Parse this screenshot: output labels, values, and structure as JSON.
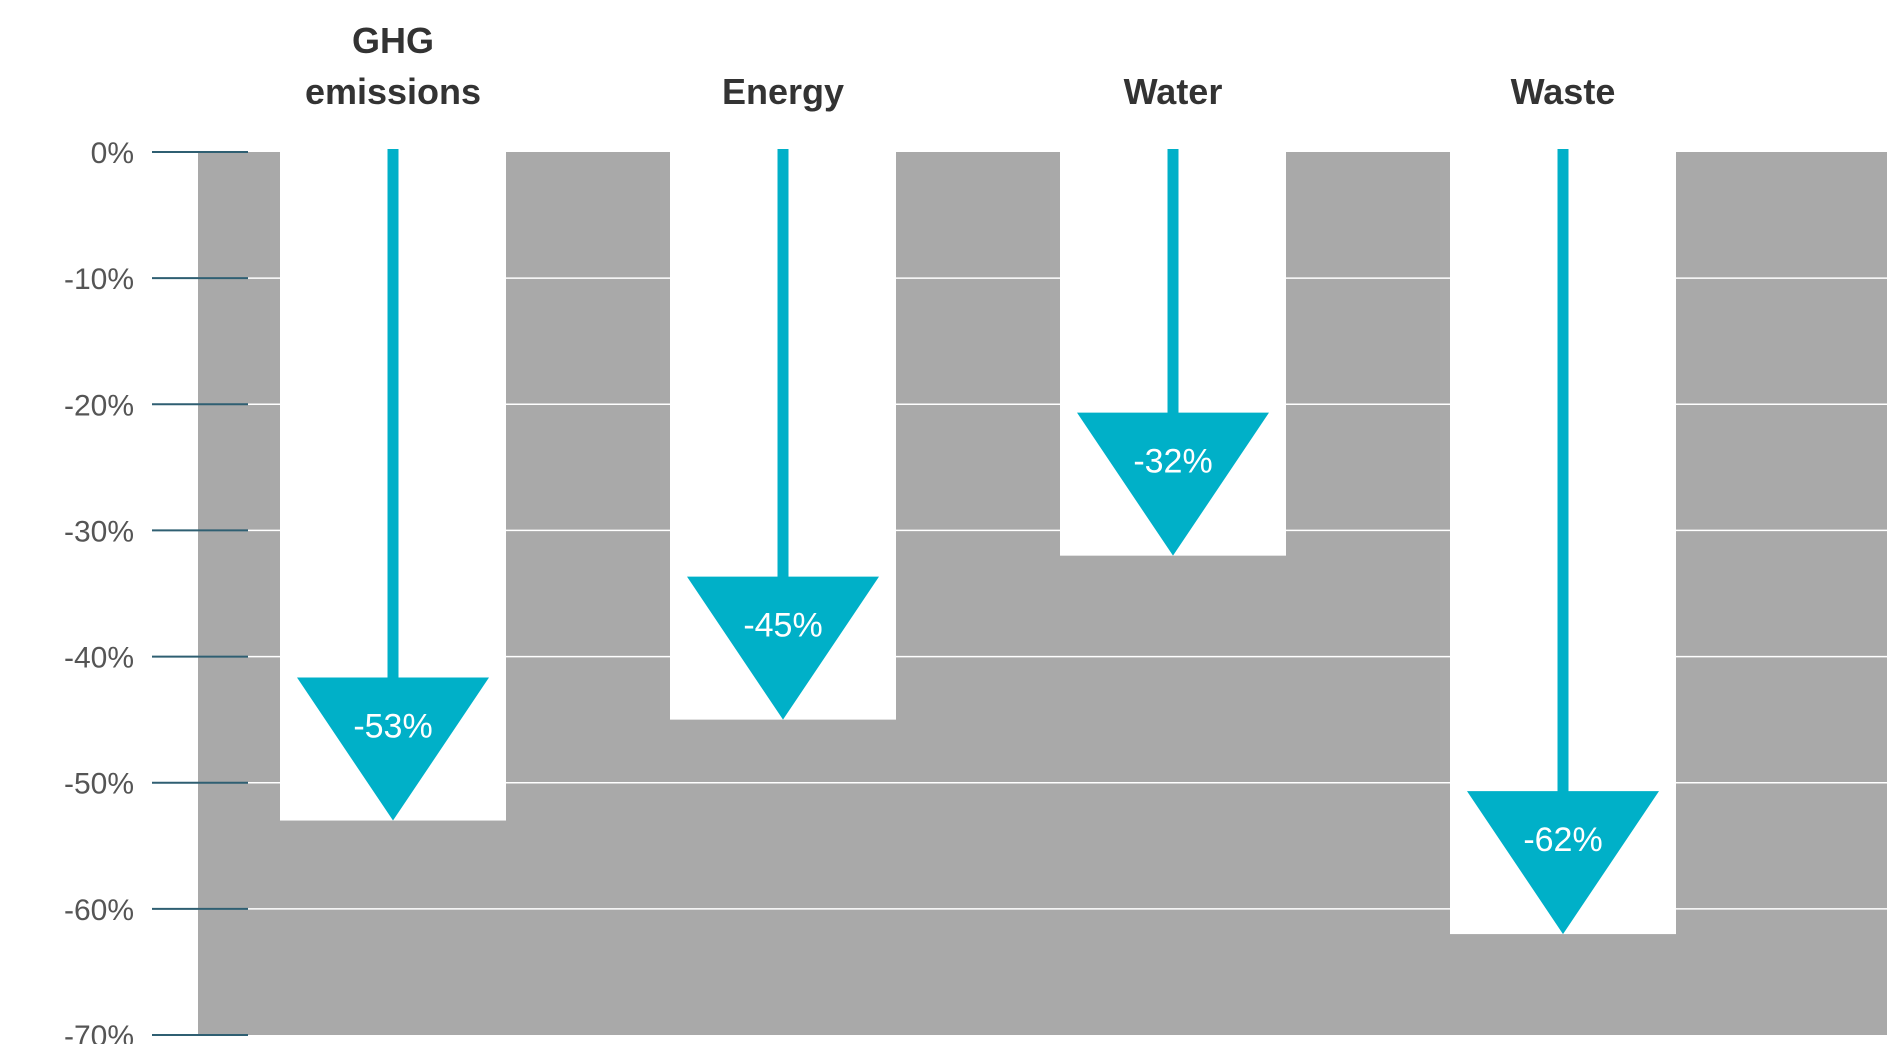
{
  "chart_data": {
    "type": "bar",
    "title": "",
    "xlabel": "",
    "ylabel": "",
    "categories": [
      [
        "GHG",
        "emissions"
      ],
      [
        "Energy"
      ],
      [
        "Water"
      ],
      [
        "Waste"
      ]
    ],
    "values": [
      -53,
      -45,
      -32,
      -62
    ],
    "data_labels": [
      "-53%",
      "-45%",
      "-32%",
      "-62%"
    ],
    "ylim": [
      -70,
      0
    ],
    "yticks": [
      0,
      -10,
      -20,
      -30,
      -40,
      -50,
      -60,
      -70
    ],
    "ytick_labels": [
      "0%",
      "-10%",
      "-20%",
      "-30%",
      "-40%",
      "-50%",
      "-60%",
      "-70%"
    ],
    "grid": true,
    "legend": "none",
    "colors": {
      "background_panel": "#a9a9a9",
      "bar": "#ffffff",
      "arrow": "#00b0c8",
      "tick_line": "#2f5f72",
      "grid": "#ffffff"
    }
  }
}
